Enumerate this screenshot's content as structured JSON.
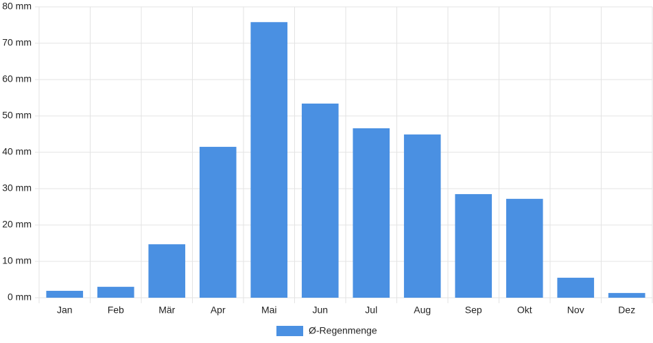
{
  "chart_data": {
    "type": "bar",
    "categories": [
      "Jan",
      "Feb",
      "Mär",
      "Apr",
      "Mai",
      "Jun",
      "Jul",
      "Aug",
      "Sep",
      "Okt",
      "Nov",
      "Dez"
    ],
    "series": [
      {
        "name": "Ø-Regenmenge",
        "color": "#4a90e2",
        "values": [
          1.9,
          3.0,
          14.7,
          41.5,
          75.8,
          53.4,
          46.6,
          44.9,
          28.5,
          27.2,
          5.5,
          1.3
        ]
      }
    ],
    "ylim": [
      0,
      80
    ],
    "yticks": [
      {
        "value": 0,
        "label": "0 mm"
      },
      {
        "value": 10,
        "label": "10 mm"
      },
      {
        "value": 20,
        "label": "20 mm"
      },
      {
        "value": 30,
        "label": "30 mm"
      },
      {
        "value": 40,
        "label": "40 mm"
      },
      {
        "value": 50,
        "label": "50 mm"
      },
      {
        "value": 60,
        "label": "60 mm"
      },
      {
        "value": 70,
        "label": "70 mm"
      },
      {
        "value": 80,
        "label": "80 mm"
      }
    ],
    "grid": true,
    "legend": "bottom"
  }
}
